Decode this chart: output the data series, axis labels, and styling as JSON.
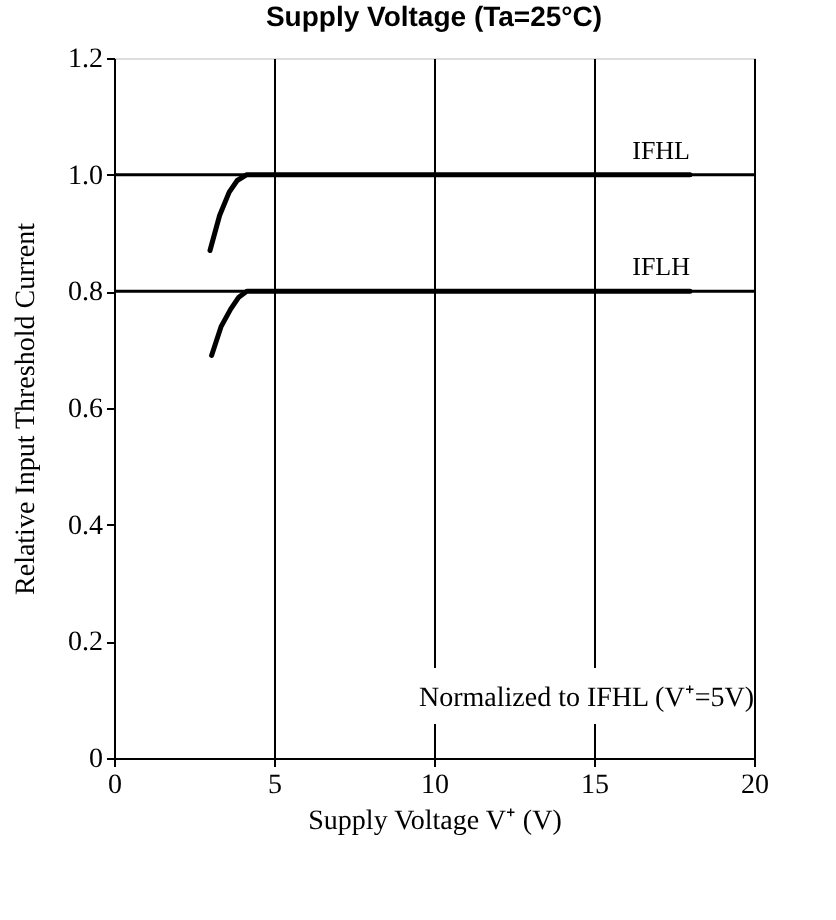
{
  "chart_data": {
    "type": "line",
    "title": "Supply Voltage (Ta=25°C)",
    "xlabel": "Supply Voltage V⁺ (V)",
    "ylabel": "Relative Input  Threshold Current",
    "xlim": [
      0,
      20
    ],
    "xticks": [
      0,
      5,
      10,
      15,
      20
    ],
    "ylim": [
      0,
      1.2
    ],
    "yticks": [
      0,
      {
        "value": 0.2,
        "label": "0.2"
      },
      {
        "value": 0.4,
        "label": "0.4"
      },
      {
        "value": 0.6,
        "label": "0.6"
      },
      {
        "value": 0.8,
        "label": "0.8"
      },
      {
        "value": 1.0,
        "label": "1.0"
      },
      {
        "value": 1.2,
        "label": "1.2"
      }
    ],
    "grid": "x",
    "line_style": "solid",
    "marker": "none",
    "ref_lines": [
      {
        "axis": "y",
        "value": 1.0
      },
      {
        "axis": "y",
        "value": 0.8
      }
    ],
    "series": [
      {
        "name": "IFHL",
        "color": "#000000",
        "x": [
          3.0,
          3.3,
          3.6,
          3.85,
          4.15,
          5,
          10,
          15,
          18
        ],
        "values": [
          0.87,
          0.93,
          0.97,
          0.99,
          1.0,
          1.0,
          1.0,
          1.0,
          1.0
        ]
      },
      {
        "name": "IFLH",
        "color": "#000000",
        "x": [
          3.05,
          3.35,
          3.65,
          3.9,
          4.15,
          5,
          10,
          15,
          18
        ],
        "values": [
          0.69,
          0.74,
          0.77,
          0.79,
          0.8,
          0.8,
          0.8,
          0.8,
          0.8
        ]
      }
    ],
    "annotations": [
      "Normalized to IFHL (V⁺=5V)"
    ]
  }
}
